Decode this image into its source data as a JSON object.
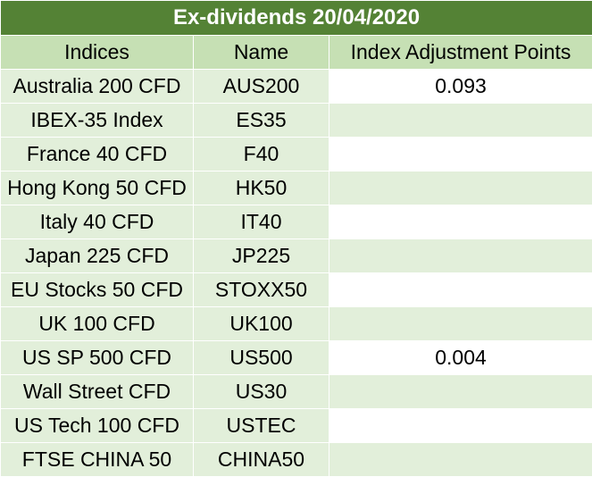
{
  "title": "Ex-dividends 20/04/2020",
  "headers": [
    "Indices",
    "Name",
    "Index Adjustment Points"
  ],
  "rows": [
    {
      "index": "Australia 200 CFD",
      "name": "AUS200",
      "points": "0.093"
    },
    {
      "index": "IBEX-35 Index",
      "name": "ES35",
      "points": ""
    },
    {
      "index": "France 40 CFD",
      "name": "F40",
      "points": ""
    },
    {
      "index": "Hong Kong 50 CFD",
      "name": "HK50",
      "points": ""
    },
    {
      "index": "Italy 40 CFD",
      "name": "IT40",
      "points": ""
    },
    {
      "index": "Japan 225 CFD",
      "name": "JP225",
      "points": ""
    },
    {
      "index": "EU Stocks 50 CFD",
      "name": "STOXX50",
      "points": ""
    },
    {
      "index": "UK 100 CFD",
      "name": "UK100",
      "points": ""
    },
    {
      "index": "US SP 500 CFD",
      "name": "US500",
      "points": "0.004"
    },
    {
      "index": "Wall Street CFD",
      "name": "US30",
      "points": ""
    },
    {
      "index": "US Tech 100 CFD",
      "name": "USTEC",
      "points": ""
    },
    {
      "index": "FTSE CHINA 50",
      "name": "CHINA50",
      "points": ""
    }
  ],
  "colors": {
    "title_bg": "#548235",
    "header_bg": "#c6e0b4",
    "band_bg": "#e2efda",
    "white": "#ffffff"
  }
}
